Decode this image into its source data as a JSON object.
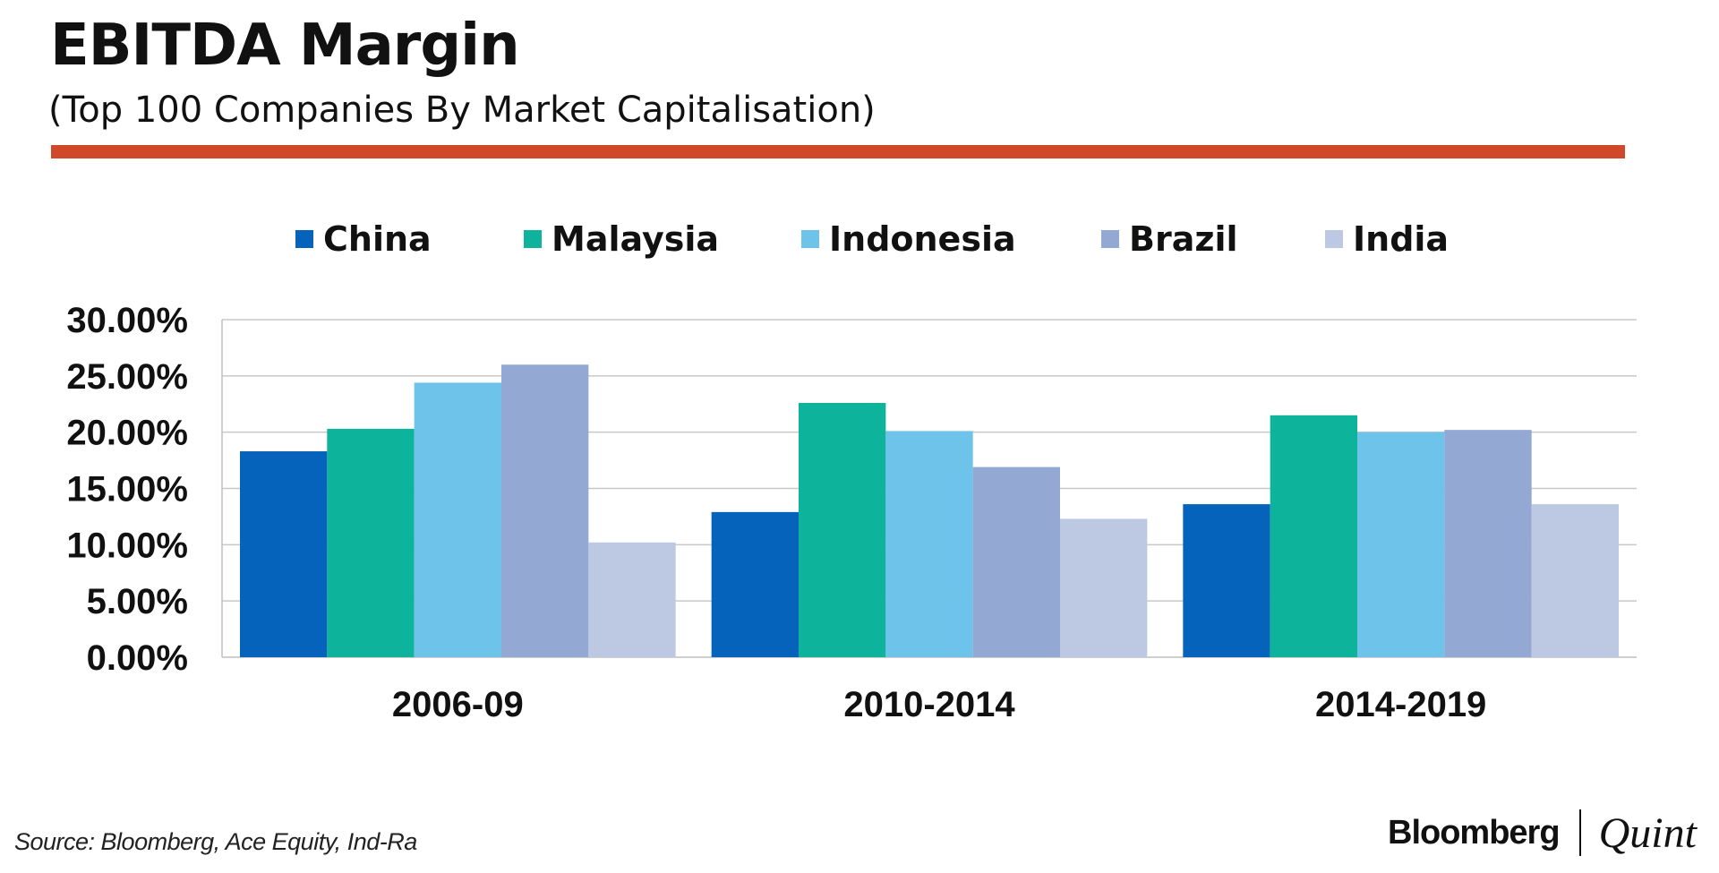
{
  "header": {
    "title": "EBITDA Margin",
    "subtitle": "(Top 100 Companies By Market Capitalisation)"
  },
  "footer": {
    "source": "Source: Bloomberg, Ace Equity, Ind-Ra",
    "brand_primary": "Bloomberg",
    "brand_secondary": "Quint"
  },
  "colors": {
    "accent_rule": "#d0482a",
    "grid": "#c8c8c8"
  },
  "chart_data": {
    "type": "bar",
    "title": "EBITDA Margin",
    "subtitle": "(Top 100 Companies By Market Capitalisation)",
    "xlabel": "",
    "ylabel": "",
    "ylim": [
      0,
      30
    ],
    "yticks": [
      0,
      5,
      10,
      15,
      20,
      25,
      30
    ],
    "ytick_labels": [
      "0.00%",
      "5.00%",
      "10.00%",
      "15.00%",
      "20.00%",
      "25.00%",
      "30.00%"
    ],
    "grid": true,
    "legend_position": "top",
    "categories": [
      "2006-09",
      "2010-2014",
      "2014-2019"
    ],
    "series": [
      {
        "name": "China",
        "color": "#0563bb",
        "values": [
          18.3,
          12.9,
          13.6
        ]
      },
      {
        "name": "Malaysia",
        "color": "#0db39a",
        "values": [
          20.3,
          22.6,
          21.5
        ]
      },
      {
        "name": "Indonesia",
        "color": "#6ec3ea",
        "values": [
          24.4,
          20.1,
          20.0
        ]
      },
      {
        "name": "Brazil",
        "color": "#93a8d2",
        "values": [
          26.0,
          16.9,
          20.2
        ]
      },
      {
        "name": "India",
        "color": "#bdc9e2",
        "values": [
          10.2,
          12.3,
          13.6
        ]
      }
    ]
  }
}
